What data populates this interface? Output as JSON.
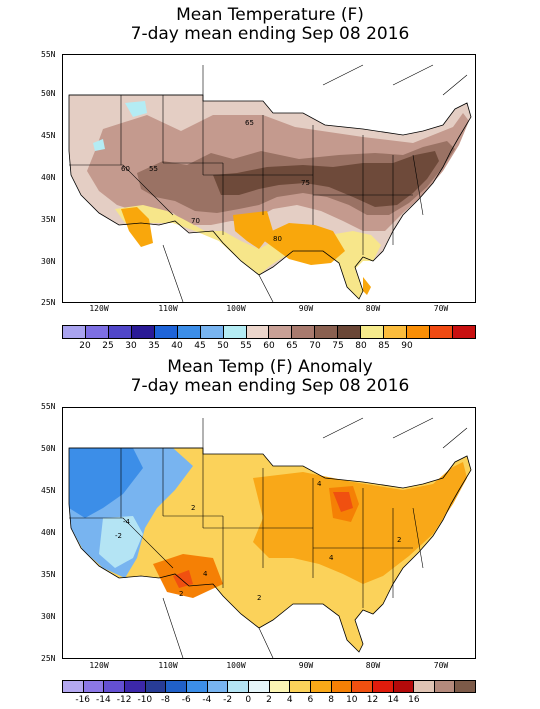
{
  "top": {
    "title_line1": "Mean Temperature (F)",
    "title_line2": "7-day mean ending Sep 08 2016",
    "contour_labels": [
      "65",
      "60",
      "55",
      "75",
      "70",
      "80"
    ],
    "colorbar_labels": [
      "20",
      "25",
      "30",
      "35",
      "40",
      "45",
      "50",
      "55",
      "60",
      "65",
      "70",
      "75",
      "80",
      "85",
      "90"
    ],
    "colorbar_colors": [
      "#a9a3ef",
      "#7d6fe3",
      "#5046c8",
      "#2a1a96",
      "#1e64d8",
      "#3c8ee8",
      "#78b4f0",
      "#b4ecf4",
      "#ecd6cc",
      "#c8a096",
      "#a87a6e",
      "#8a6050",
      "#6a4636",
      "#f5ea8c",
      "#fbbc3c",
      "#f98e06",
      "#f04a12",
      "#c81010"
    ]
  },
  "bottom": {
    "title_line1": "Mean Temp (F) Anomaly",
    "title_line2": "7-day mean ending Sep 08 2016",
    "contour_labels": [
      "-4",
      "-2",
      "2",
      "4",
      "2",
      "4",
      "2",
      "4",
      "2"
    ],
    "colorbar_labels": [
      "-16",
      "-14",
      "-12",
      "-10",
      "-8",
      "-6",
      "-4",
      "-2",
      "0",
      "2",
      "4",
      "6",
      "8",
      "10",
      "12",
      "14",
      "16"
    ],
    "colorbar_colors": [
      "#b4a8f0",
      "#8c78e6",
      "#6450d2",
      "#3c28aa",
      "#283c96",
      "#2060c8",
      "#3c8ee8",
      "#78b4f0",
      "#b4e4f4",
      "#e6f6fa",
      "#fbf5b4",
      "#fbd25a",
      "#f9a818",
      "#f58005",
      "#f05010",
      "#e01c0c",
      "#b40a0a",
      "#e0c4b4",
      "#b48a7c",
      "#7c5a48"
    ]
  },
  "axes": {
    "lat_labels": [
      "55N",
      "50N",
      "45N",
      "40N",
      "35N",
      "30N",
      "25N"
    ],
    "lon_labels": [
      "120W",
      "110W",
      "100W",
      "90W",
      "80W",
      "70W"
    ]
  }
}
